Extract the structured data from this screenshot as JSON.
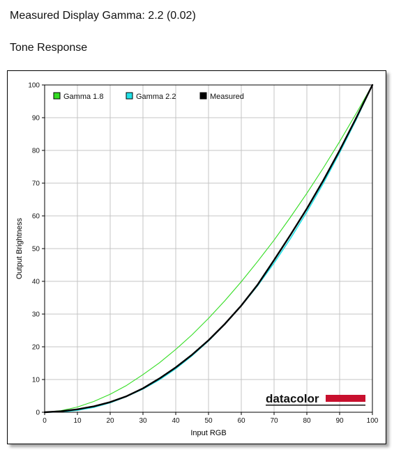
{
  "header": {
    "title": "Measured Display Gamma: 2.2 (0.02)",
    "subtitle": "Tone Response"
  },
  "colors": {
    "gamma18": "#33dd22",
    "gamma22": "#22e0e6",
    "measured": "#000000",
    "grid": "#c4c4c4",
    "logo_bar": "#c8102e"
  },
  "logo": {
    "text": "datacolor"
  },
  "chart_data": {
    "type": "line",
    "title": "Tone Response",
    "xlabel": "Input RGB",
    "ylabel": "Output Brightness",
    "xlim": [
      0,
      100
    ],
    "ylim": [
      0,
      100
    ],
    "x_ticks": [
      0,
      10,
      20,
      30,
      40,
      50,
      60,
      70,
      80,
      90,
      100
    ],
    "y_ticks": [
      0,
      10,
      20,
      30,
      40,
      50,
      60,
      70,
      80,
      90,
      100
    ],
    "grid": true,
    "legend_position": "top-left",
    "x": [
      0,
      5,
      10,
      15,
      20,
      25,
      30,
      35,
      40,
      45,
      50,
      55,
      60,
      65,
      70,
      75,
      80,
      85,
      90,
      95,
      100
    ],
    "series": [
      {
        "name": "Gamma 1.8",
        "color": "#33dd22",
        "values": [
          0,
          0.5,
          1.6,
          3.3,
          5.5,
          8.2,
          11.5,
          15.1,
          19.2,
          23.7,
          28.7,
          34.1,
          39.9,
          46.1,
          52.6,
          59.6,
          66.9,
          74.6,
          82.7,
          91.2,
          100
        ]
      },
      {
        "name": "Gamma 2.2",
        "color": "#22e0e6",
        "values": [
          0,
          0.1,
          0.6,
          1.5,
          2.9,
          4.8,
          7.1,
          9.9,
          13.3,
          17.3,
          21.8,
          26.9,
          32.5,
          38.7,
          45.6,
          53.1,
          61.2,
          69.9,
          79.3,
          89.3,
          100
        ]
      },
      {
        "name": "Measured",
        "color": "#000000",
        "values": [
          0,
          0.3,
          0.9,
          1.8,
          3.1,
          4.9,
          7.3,
          10.3,
          13.7,
          17.6,
          22.0,
          27.0,
          32.6,
          39.0,
          46.5,
          54.2,
          62.2,
          70.8,
          80.0,
          89.8,
          100
        ]
      }
    ]
  }
}
